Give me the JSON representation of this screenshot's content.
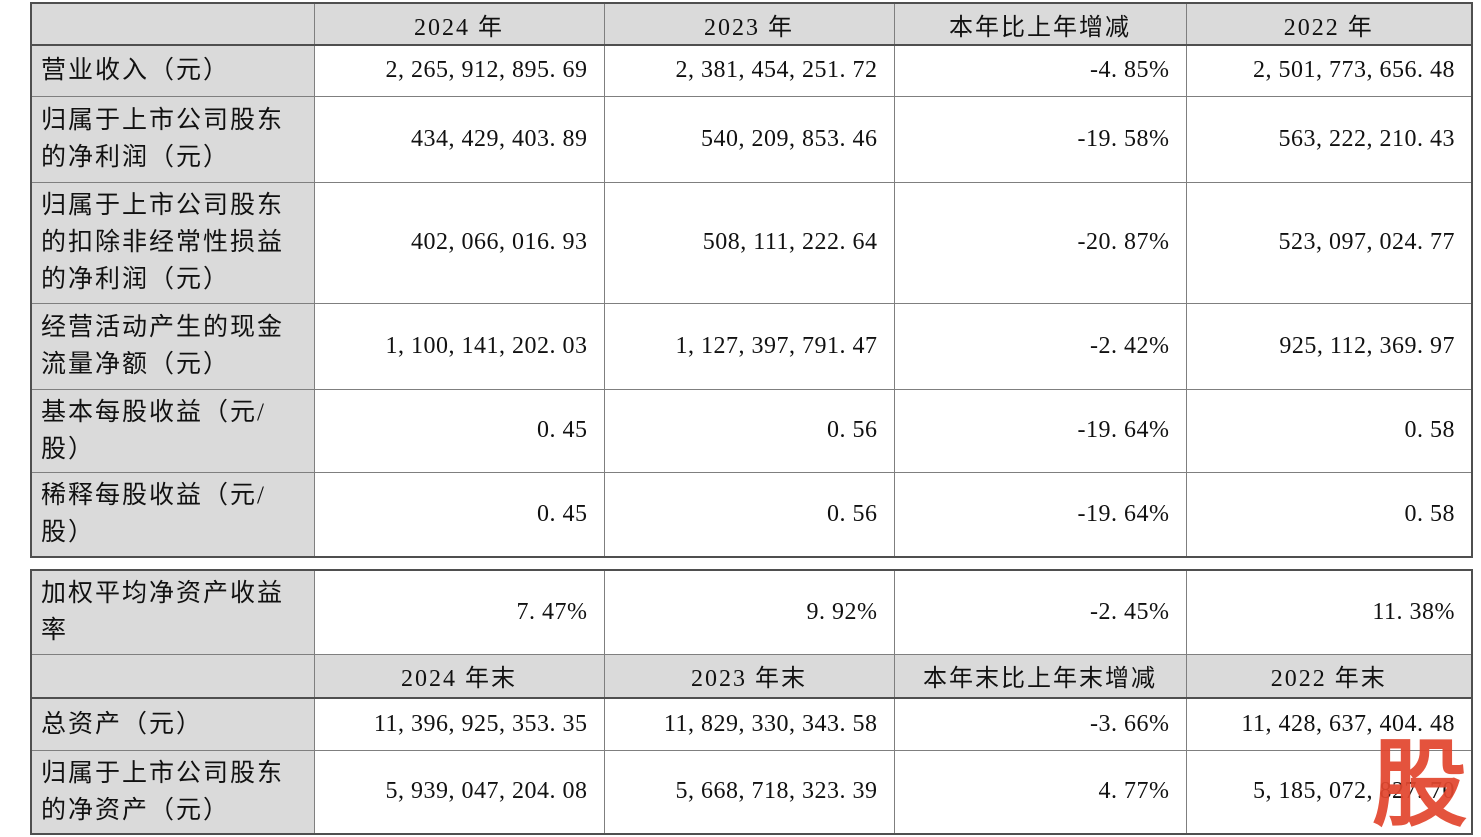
{
  "block1": {
    "header": [
      "",
      "2024 年",
      "2023 年",
      "本年比上年增减",
      "2022 年"
    ],
    "rows": [
      {
        "label": "营业收入（元）",
        "values": [
          "2, 265, 912, 895. 69",
          "2, 381, 454, 251. 72",
          "-4. 85%",
          "2, 501, 773, 656. 48"
        ]
      },
      {
        "label": "归属于上市公司股东\n的净利润（元）",
        "values": [
          "434, 429, 403. 89",
          "540, 209, 853. 46",
          "-19. 58%",
          "563, 222, 210. 43"
        ]
      },
      {
        "label": "归属于上市公司股东\n的扣除非经常性损益\n的净利润（元）",
        "values": [
          "402, 066, 016. 93",
          "508, 111, 222. 64",
          "-20. 87%",
          "523, 097, 024. 77"
        ]
      },
      {
        "label": "经营活动产生的现金\n流量净额（元）",
        "values": [
          "1, 100, 141, 202. 03",
          "1, 127, 397, 791. 47",
          "-2. 42%",
          "925, 112, 369. 97"
        ]
      },
      {
        "label": "基本每股收益（元/\n股）",
        "values": [
          "0. 45",
          "0. 56",
          "-19. 64%",
          "0. 58"
        ]
      },
      {
        "label": "稀释每股收益（元/\n股）",
        "values": [
          "0. 45",
          "0. 56",
          "-19. 64%",
          "0. 58"
        ]
      }
    ]
  },
  "block2": {
    "pre_rows": [
      {
        "label": "加权平均净资产收益\n率",
        "values": [
          "7. 47%",
          "9. 92%",
          "-2. 45%",
          "11. 38%"
        ]
      }
    ],
    "header": [
      "",
      "2024 年末",
      "2023 年末",
      "本年末比上年末增减",
      "2022 年末"
    ],
    "rows": [
      {
        "label": "总资产（元）",
        "values": [
          "11, 396, 925, 353. 35",
          "11, 829, 330, 343. 58",
          "-3. 66%",
          "11, 428, 637, 404. 48"
        ]
      },
      {
        "label": "归属于上市公司股东\n的净资产（元）",
        "values": [
          "5, 939, 047, 204. 08",
          "5, 668, 718, 323. 39",
          "4. 77%",
          "5, 185, 072, 827. 70"
        ],
        "obscured_by_watermark": true
      }
    ]
  },
  "watermark": {
    "text": "股",
    "color": "#e2472f"
  },
  "colors": {
    "header_bg": "#dadada",
    "label_bg": "#dadada",
    "cell_bg": "#ffffff",
    "border": "#7f7f7f",
    "border_strong": "#4f4f4f",
    "text": "#111111",
    "watermark_red": "#e2472f"
  }
}
